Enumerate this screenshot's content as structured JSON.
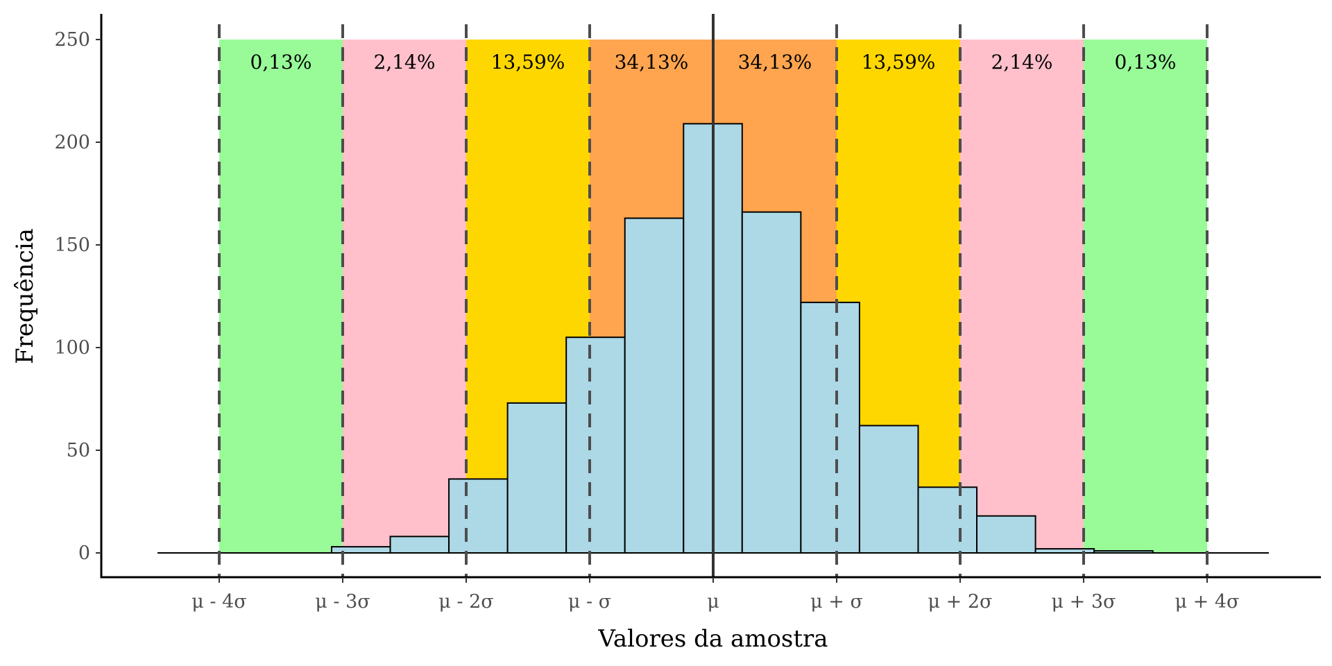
{
  "chart_data": {
    "type": "bar",
    "subtype": "histogram",
    "xlabel": "Valores da amostra",
    "ylabel": "Frequência",
    "ylim": [
      0,
      250
    ],
    "y_ticks": [
      0,
      50,
      100,
      150,
      200,
      250
    ],
    "x_unit": "standard deviations from mean",
    "xlim": [
      -4.5,
      4.5
    ],
    "x_ticks": [
      {
        "value": -4,
        "label": "μ - 4σ"
      },
      {
        "value": -3,
        "label": "μ - 3σ"
      },
      {
        "value": -2,
        "label": "μ - 2σ"
      },
      {
        "value": -1,
        "label": "μ - σ"
      },
      {
        "value": 0,
        "label": "μ"
      },
      {
        "value": 1,
        "label": "μ + σ"
      },
      {
        "value": 2,
        "label": "μ + 2σ"
      },
      {
        "value": 3,
        "label": "μ + 3σ"
      },
      {
        "value": 4,
        "label": "μ + 4σ"
      }
    ],
    "bin_edges": [
      -3.09,
      -2.615,
      -2.14,
      -1.665,
      -1.19,
      -0.715,
      -0.24,
      0.235,
      0.71,
      1.185,
      1.66,
      2.135,
      2.61,
      3.085,
      3.56
    ],
    "counts": [
      3,
      8,
      36,
      73,
      105,
      163,
      209,
      166,
      122,
      62,
      32,
      18,
      2,
      1
    ],
    "bands": [
      {
        "from": -4,
        "to": -3,
        "label": "0,13%",
        "color": "#98FB98"
      },
      {
        "from": -3,
        "to": -2,
        "label": "2,14%",
        "color": "#FFC0CB"
      },
      {
        "from": -2,
        "to": -1,
        "label": "13,59%",
        "color": "#FFD700"
      },
      {
        "from": -1,
        "to": 0,
        "label": "34,13%",
        "color": "#FFA54F"
      },
      {
        "from": 0,
        "to": 1,
        "label": "34,13%",
        "color": "#FFA54F"
      },
      {
        "from": 1,
        "to": 2,
        "label": "13,59%",
        "color": "#FFD700"
      },
      {
        "from": 2,
        "to": 3,
        "label": "2,14%",
        "color": "#FFC0CB"
      },
      {
        "from": 3,
        "to": 4,
        "label": "0,13%",
        "color": "#98FB98"
      }
    ],
    "baseline_range": [
      -4.5,
      4.5
    ],
    "dashed_lines_at": [
      -4,
      -3,
      -2,
      -1,
      1,
      2,
      3,
      4
    ],
    "mean_line_at": 0,
    "colors": {
      "bar_fill": "#ADD8E6",
      "bar_stroke": "#000000",
      "guide_line": "#4d4d4d",
      "mean_line": "#333333"
    },
    "grid": false,
    "legend": "none"
  }
}
